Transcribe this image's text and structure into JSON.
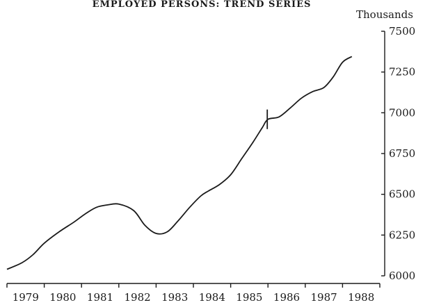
{
  "chart_data": {
    "type": "line",
    "title": "EMPLOYED PERSONS: TREND SERIES",
    "ylabel": "Thousands",
    "xlabel": "",
    "ylim": [
      6000,
      7500
    ],
    "y_ticks": [
      "7500",
      "7250",
      "7000",
      "6750",
      "6500",
      "6250",
      "6000"
    ],
    "y_tick_values": [
      7500,
      7250,
      7000,
      6750,
      6500,
      6250,
      6000
    ],
    "categories": [
      "1979",
      "1980",
      "1981",
      "1982",
      "1983",
      "1984",
      "1985",
      "1986",
      "1987",
      "1988"
    ],
    "xlim": [
      1979,
      1989
    ],
    "grid": false,
    "series": [
      {
        "x": [
          1979.0,
          1979.4,
          1979.7,
          1980.0,
          1980.4,
          1980.8,
          1981.1,
          1981.4,
          1981.7,
          1982.0,
          1982.4,
          1982.7,
          1983.0,
          1983.3,
          1983.6,
          1983.9,
          1984.2,
          1984.4,
          1984.7,
          1985.0,
          1985.3,
          1985.6,
          1985.85,
          1986.0,
          1986.3,
          1986.6,
          1986.9,
          1987.2,
          1987.5,
          1987.75,
          1988.0,
          1988.25
        ],
        "values": [
          6040,
          6080,
          6130,
          6200,
          6270,
          6330,
          6380,
          6420,
          6435,
          6440,
          6400,
          6310,
          6260,
          6270,
          6340,
          6420,
          6490,
          6520,
          6560,
          6620,
          6720,
          6820,
          6910,
          6960,
          6975,
          7030,
          7090,
          7130,
          7155,
          7220,
          7310,
          7345
        ]
      }
    ],
    "marker": {
      "x": 1986,
      "values": [
        6900,
        7020
      ]
    }
  }
}
